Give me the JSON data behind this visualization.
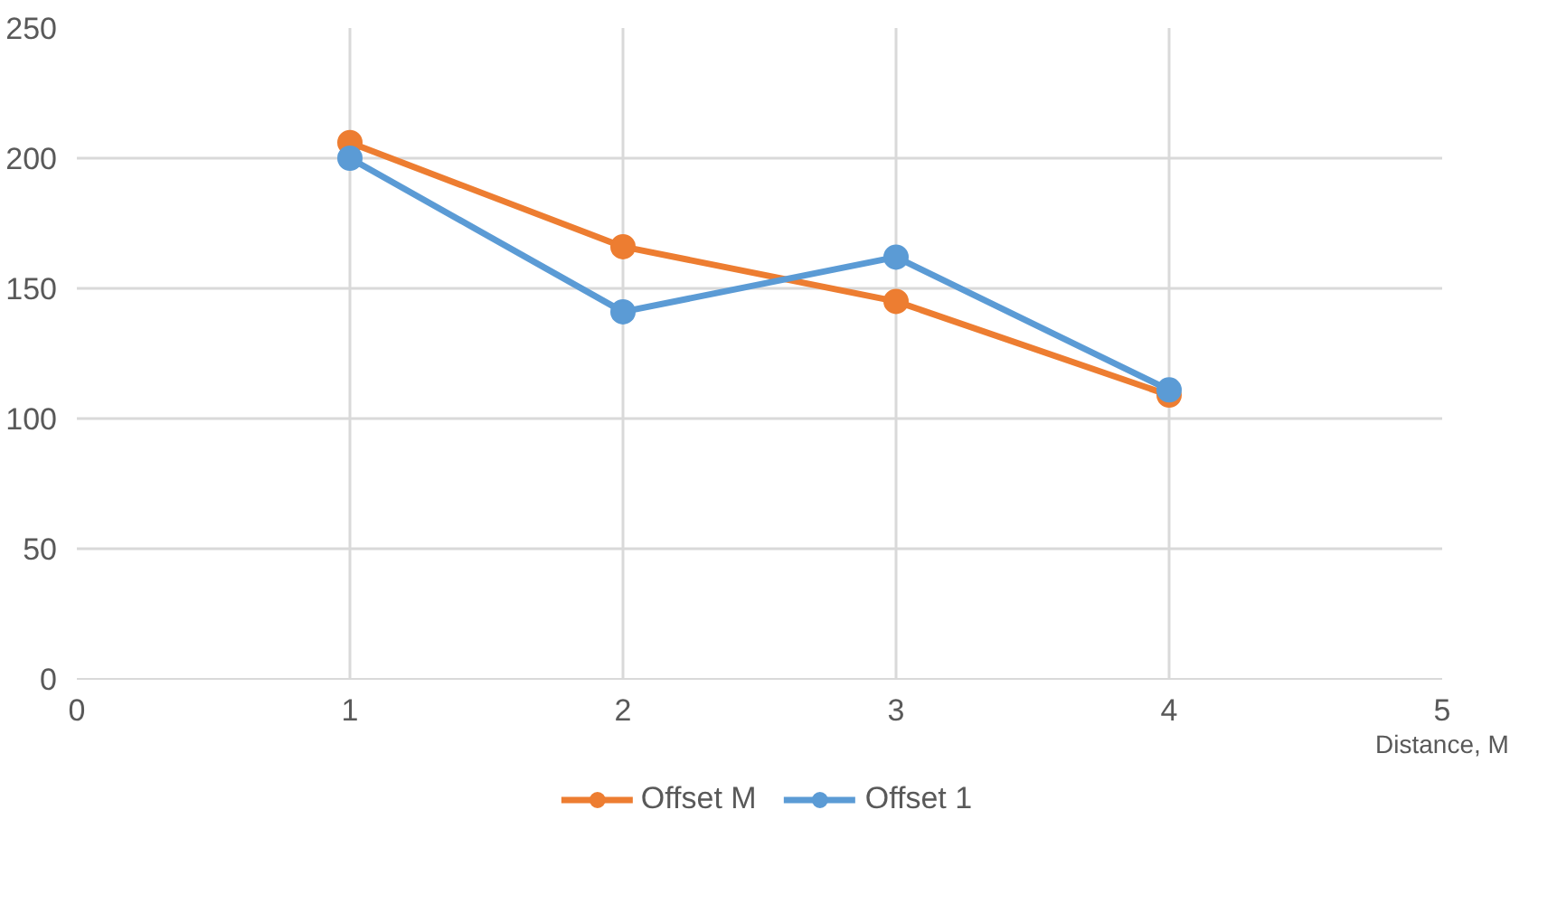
{
  "chart_data": {
    "type": "line",
    "xlabel": "Distance, M",
    "x": [
      1,
      2,
      3,
      4
    ],
    "series": [
      {
        "name": "Offset M",
        "color": "#ed7d31",
        "values": [
          206,
          166,
          145,
          109
        ]
      },
      {
        "name": "Offset 1",
        "color": "#5b9bd5",
        "values": [
          200,
          141,
          162,
          111
        ]
      }
    ],
    "xlim": [
      0,
      5
    ],
    "xticks": [
      0,
      1,
      2,
      3,
      4,
      5
    ],
    "ylim": [
      0,
      250
    ],
    "yticks": [
      0,
      50,
      100,
      150,
      200,
      250
    ],
    "grid": true,
    "legend": "bottom",
    "marker": "circle",
    "line_style": "solid"
  }
}
